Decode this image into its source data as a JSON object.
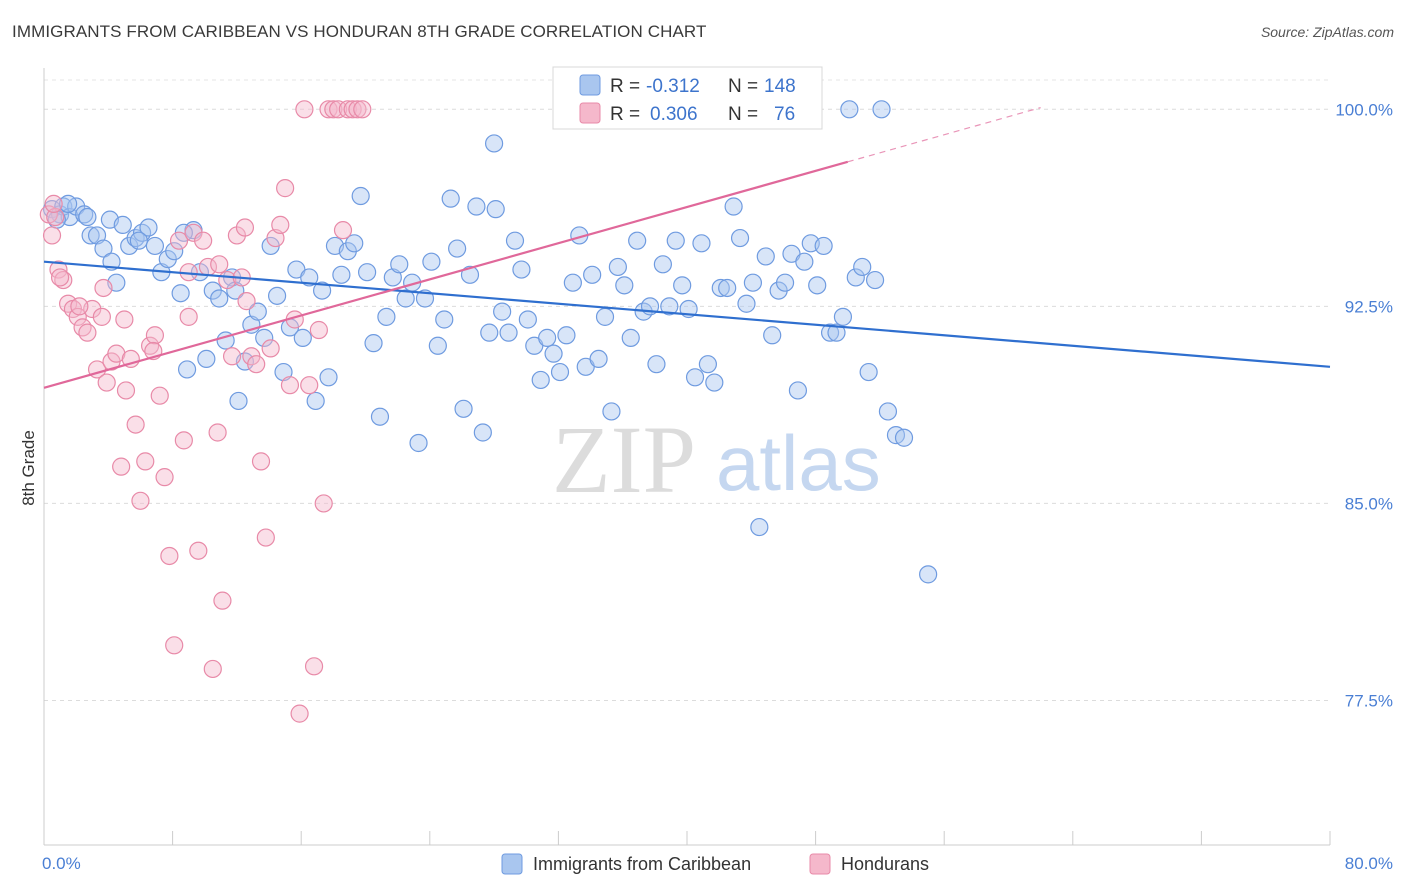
{
  "title": "IMMIGRANTS FROM CARIBBEAN VS HONDURAN 8TH GRADE CORRELATION CHART",
  "source": "Source: ZipAtlas.com",
  "watermark": {
    "zip": "ZIP",
    "atlas": "atlas"
  },
  "legend_stats": [
    {
      "r_label": "R =",
      "r_value": "-0.312",
      "n_label": "N =",
      "n_value": "148",
      "color": "#a9c6ef",
      "stroke": "#6f9be0"
    },
    {
      "r_label": "R =",
      "r_value": "0.306",
      "n_label": "N =",
      "n_value": "76",
      "color": "#f5b8cb",
      "stroke": "#e88aa8"
    }
  ],
  "chart_data": {
    "type": "scatter",
    "ylabel": "8th Grade",
    "xlim": [
      0,
      80
    ],
    "ylim": [
      72.0,
      101.8
    ],
    "x_tick_labels": [
      "0.0%",
      "80.0%"
    ],
    "y_ticks": [
      100.0,
      92.5,
      85.0,
      77.5
    ],
    "y_tick_labels": [
      "100.0%",
      "92.5%",
      "85.0%",
      "77.5%"
    ],
    "grid": true,
    "legend_position": "bottom",
    "series": [
      {
        "name": "Immigrants from Caribbean",
        "color": "#a9c6ef",
        "stroke": "#6f9be0",
        "line_color": "#2f6fcf",
        "trend": {
          "x": [
            0,
            80
          ],
          "y": [
            94.2,
            90.2
          ]
        },
        "points": [
          [
            0.5,
            96.2
          ],
          [
            1.0,
            96.0
          ],
          [
            1.2,
            96.3
          ],
          [
            1.6,
            95.9
          ],
          [
            2.0,
            96.3
          ],
          [
            2.5,
            96.0
          ],
          [
            2.9,
            95.2
          ],
          [
            3.3,
            95.2
          ],
          [
            3.7,
            94.7
          ],
          [
            4.1,
            95.8
          ],
          [
            4.5,
            93.4
          ],
          [
            4.9,
            95.6
          ],
          [
            5.3,
            94.8
          ],
          [
            5.7,
            95.1
          ],
          [
            6.1,
            95.3
          ],
          [
            6.5,
            95.5
          ],
          [
            6.9,
            94.8
          ],
          [
            7.3,
            93.8
          ],
          [
            7.7,
            94.3
          ],
          [
            8.1,
            94.6
          ],
          [
            8.5,
            93.0
          ],
          [
            8.9,
            90.1
          ],
          [
            9.3,
            95.4
          ],
          [
            9.7,
            93.8
          ],
          [
            10.1,
            90.5
          ],
          [
            10.5,
            93.1
          ],
          [
            10.9,
            92.8
          ],
          [
            11.3,
            91.2
          ],
          [
            11.7,
            93.6
          ],
          [
            12.1,
            88.9
          ],
          [
            12.5,
            90.4
          ],
          [
            12.9,
            91.8
          ],
          [
            13.3,
            92.3
          ],
          [
            13.7,
            91.3
          ],
          [
            14.1,
            94.8
          ],
          [
            14.5,
            92.9
          ],
          [
            14.9,
            90.0
          ],
          [
            15.3,
            91.7
          ],
          [
            15.7,
            93.9
          ],
          [
            16.1,
            91.3
          ],
          [
            16.5,
            93.6
          ],
          [
            16.9,
            88.9
          ],
          [
            17.3,
            93.1
          ],
          [
            17.7,
            89.8
          ],
          [
            18.1,
            94.8
          ],
          [
            18.5,
            93.7
          ],
          [
            18.9,
            94.6
          ],
          [
            19.3,
            94.9
          ],
          [
            19.7,
            96.7
          ],
          [
            20.1,
            93.8
          ],
          [
            20.5,
            91.1
          ],
          [
            20.9,
            88.3
          ],
          [
            21.3,
            92.1
          ],
          [
            21.7,
            93.6
          ],
          [
            22.1,
            94.1
          ],
          [
            22.5,
            92.8
          ],
          [
            22.9,
            93.4
          ],
          [
            23.3,
            87.3
          ],
          [
            23.7,
            92.8
          ],
          [
            24.1,
            94.2
          ],
          [
            24.5,
            91.0
          ],
          [
            24.9,
            92.0
          ],
          [
            25.3,
            96.6
          ],
          [
            25.7,
            94.7
          ],
          [
            26.1,
            88.6
          ],
          [
            26.5,
            93.7
          ],
          [
            26.9,
            96.3
          ],
          [
            27.3,
            87.7
          ],
          [
            27.7,
            91.5
          ],
          [
            28.1,
            96.2
          ],
          [
            28.5,
            92.3
          ],
          [
            28.9,
            91.5
          ],
          [
            29.3,
            95.0
          ],
          [
            29.7,
            93.9
          ],
          [
            30.1,
            92.0
          ],
          [
            30.5,
            91.0
          ],
          [
            30.9,
            89.7
          ],
          [
            31.3,
            91.3
          ],
          [
            31.7,
            90.7
          ],
          [
            32.1,
            90.0
          ],
          [
            32.5,
            91.4
          ],
          [
            32.9,
            93.4
          ],
          [
            33.3,
            95.2
          ],
          [
            33.7,
            90.2
          ],
          [
            34.1,
            93.7
          ],
          [
            34.5,
            90.5
          ],
          [
            34.9,
            92.1
          ],
          [
            35.3,
            88.5
          ],
          [
            35.7,
            94.0
          ],
          [
            36.1,
            93.3
          ],
          [
            36.5,
            91.3
          ],
          [
            36.9,
            95.0
          ],
          [
            37.3,
            92.3
          ],
          [
            37.7,
            92.5
          ],
          [
            38.1,
            90.3
          ],
          [
            38.5,
            94.1
          ],
          [
            38.9,
            92.5
          ],
          [
            39.3,
            95.0
          ],
          [
            39.7,
            93.3
          ],
          [
            40.1,
            92.4
          ],
          [
            40.5,
            89.8
          ],
          [
            40.9,
            94.9
          ],
          [
            41.3,
            90.3
          ],
          [
            41.7,
            89.6
          ],
          [
            42.1,
            93.2
          ],
          [
            42.5,
            93.2
          ],
          [
            42.9,
            96.3
          ],
          [
            43.3,
            95.1
          ],
          [
            43.7,
            92.6
          ],
          [
            44.1,
            93.4
          ],
          [
            44.5,
            84.1
          ],
          [
            44.9,
            94.4
          ],
          [
            45.3,
            91.4
          ],
          [
            45.7,
            93.1
          ],
          [
            46.1,
            93.4
          ],
          [
            46.5,
            94.5
          ],
          [
            46.9,
            89.3
          ],
          [
            47.3,
            94.2
          ],
          [
            47.7,
            94.9
          ],
          [
            48.1,
            93.3
          ],
          [
            48.5,
            94.8
          ],
          [
            48.9,
            91.5
          ],
          [
            49.3,
            91.5
          ],
          [
            49.7,
            92.1
          ],
          [
            50.1,
            100.0
          ],
          [
            50.5,
            93.6
          ],
          [
            50.9,
            94.0
          ],
          [
            51.3,
            90.0
          ],
          [
            51.7,
            93.5
          ],
          [
            52.1,
            100.0
          ],
          [
            52.5,
            88.5
          ],
          [
            53.0,
            87.6
          ],
          [
            53.5,
            87.5
          ],
          [
            55.0,
            82.3
          ],
          [
            28.0,
            98.7
          ],
          [
            0.8,
            95.8
          ],
          [
            1.5,
            96.4
          ],
          [
            2.7,
            95.9
          ],
          [
            4.2,
            94.2
          ],
          [
            5.9,
            95.0
          ],
          [
            8.7,
            95.3
          ],
          [
            11.9,
            93.1
          ]
        ]
      },
      {
        "name": "Hondurans",
        "color": "#f5b8cb",
        "stroke": "#e88aa8",
        "line_color": "#e0689a",
        "trend": {
          "x": [
            0,
            50
          ],
          "y": [
            89.4,
            98.0
          ]
        },
        "points": [
          [
            0.3,
            96.0
          ],
          [
            0.5,
            95.2
          ],
          [
            0.7,
            95.9
          ],
          [
            0.9,
            93.9
          ],
          [
            1.2,
            93.5
          ],
          [
            1.5,
            92.6
          ],
          [
            1.8,
            92.4
          ],
          [
            2.1,
            92.1
          ],
          [
            2.4,
            91.7
          ],
          [
            2.7,
            91.5
          ],
          [
            3.0,
            92.4
          ],
          [
            3.3,
            90.1
          ],
          [
            3.6,
            92.1
          ],
          [
            3.9,
            89.6
          ],
          [
            4.2,
            90.4
          ],
          [
            4.5,
            90.7
          ],
          [
            4.8,
            86.4
          ],
          [
            5.1,
            89.3
          ],
          [
            5.4,
            90.5
          ],
          [
            5.7,
            88.0
          ],
          [
            6.0,
            85.1
          ],
          [
            6.3,
            86.6
          ],
          [
            6.6,
            91.0
          ],
          [
            6.9,
            91.4
          ],
          [
            7.2,
            89.1
          ],
          [
            7.5,
            86.0
          ],
          [
            7.8,
            83.0
          ],
          [
            8.1,
            79.6
          ],
          [
            8.4,
            95.0
          ],
          [
            8.7,
            87.4
          ],
          [
            9.0,
            92.1
          ],
          [
            9.3,
            95.3
          ],
          [
            9.6,
            83.2
          ],
          [
            9.9,
            95.0
          ],
          [
            10.2,
            94.0
          ],
          [
            10.5,
            78.7
          ],
          [
            10.8,
            87.7
          ],
          [
            11.1,
            81.3
          ],
          [
            11.4,
            93.5
          ],
          [
            11.7,
            90.6
          ],
          [
            12.0,
            95.2
          ],
          [
            12.3,
            93.6
          ],
          [
            12.6,
            92.7
          ],
          [
            12.9,
            90.6
          ],
          [
            13.2,
            90.3
          ],
          [
            13.5,
            86.6
          ],
          [
            13.8,
            83.7
          ],
          [
            14.1,
            90.9
          ],
          [
            14.4,
            95.1
          ],
          [
            14.7,
            95.6
          ],
          [
            15.0,
            97.0
          ],
          [
            15.3,
            89.5
          ],
          [
            15.6,
            92.0
          ],
          [
            15.9,
            77.0
          ],
          [
            16.2,
            100.0
          ],
          [
            16.5,
            89.5
          ],
          [
            16.8,
            78.8
          ],
          [
            17.1,
            91.6
          ],
          [
            17.4,
            85.0
          ],
          [
            17.7,
            100.0
          ],
          [
            18.0,
            100.0
          ],
          [
            18.3,
            100.0
          ],
          [
            18.6,
            95.4
          ],
          [
            18.9,
            100.0
          ],
          [
            19.2,
            100.0
          ],
          [
            19.5,
            100.0
          ],
          [
            19.8,
            100.0
          ],
          [
            9.0,
            93.8
          ],
          [
            5.0,
            92.0
          ],
          [
            3.7,
            93.2
          ],
          [
            2.2,
            92.5
          ],
          [
            6.8,
            90.8
          ],
          [
            10.9,
            94.1
          ],
          [
            12.5,
            95.5
          ],
          [
            0.6,
            96.4
          ],
          [
            1.0,
            93.6
          ]
        ]
      }
    ]
  }
}
